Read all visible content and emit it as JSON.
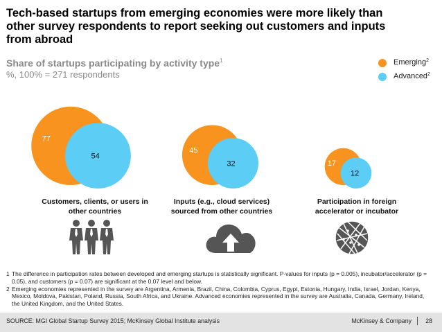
{
  "headline": "Tech-based startups from emerging economies were more likely than other survey respondents to report seeking out customers and inputs from abroad",
  "chart_data": {
    "type": "proportional-circles",
    "title": "Share of startups participating by activity type",
    "title_sup": "1",
    "subtitle": "%, 100% = 271 respondents",
    "legend": [
      {
        "label": "Emerging",
        "sup": "2",
        "color": "#f7931e"
      },
      {
        "label": "Advanced",
        "sup": "2",
        "color": "#5ccdf5"
      }
    ],
    "categories": [
      "Customers, clients, or users in other countries",
      "Inputs (e.g., cloud services) sourced from other countries",
      "Participation in foreign accelerator or incubator"
    ],
    "series": [
      {
        "name": "Emerging",
        "values": [
          77,
          45,
          17
        ],
        "color": "#f7931e"
      },
      {
        "name": "Advanced",
        "values": [
          54,
          32,
          12
        ],
        "color": "#5ccdf5"
      }
    ]
  },
  "icons": [
    "people-group-icon",
    "cloud-upload-icon",
    "globe-icon"
  ],
  "footnotes": [
    {
      "num": "1",
      "text": "The difference in participation rates between developed and emerging startups is statistically significant. P-values for inputs (p = 0.005), incubator/accelerator (p = 0.05), and customers (p = 0.07) are significant at the 0.07 level and below."
    },
    {
      "num": "2",
      "text": "Emerging economies represented in the survey are Argentina, Armenia, Brazil, China, Colombia, Cyprus, Egypt, Estonia, Hungary, India, Israel, Jordan, Kenya, Mexico, Moldova, Pakistan, Poland, Russia, South Africa, and Ukraine. Advanced economies represented in the survey are Australia, Canada, Germany, Ireland, the United Kingdom, and the United States."
    }
  ],
  "footer": {
    "source": "SOURCE: MGI Global Startup Survey 2015; McKinsey Global Institute analysis",
    "brand": "McKinsey & Company",
    "page": "28"
  }
}
